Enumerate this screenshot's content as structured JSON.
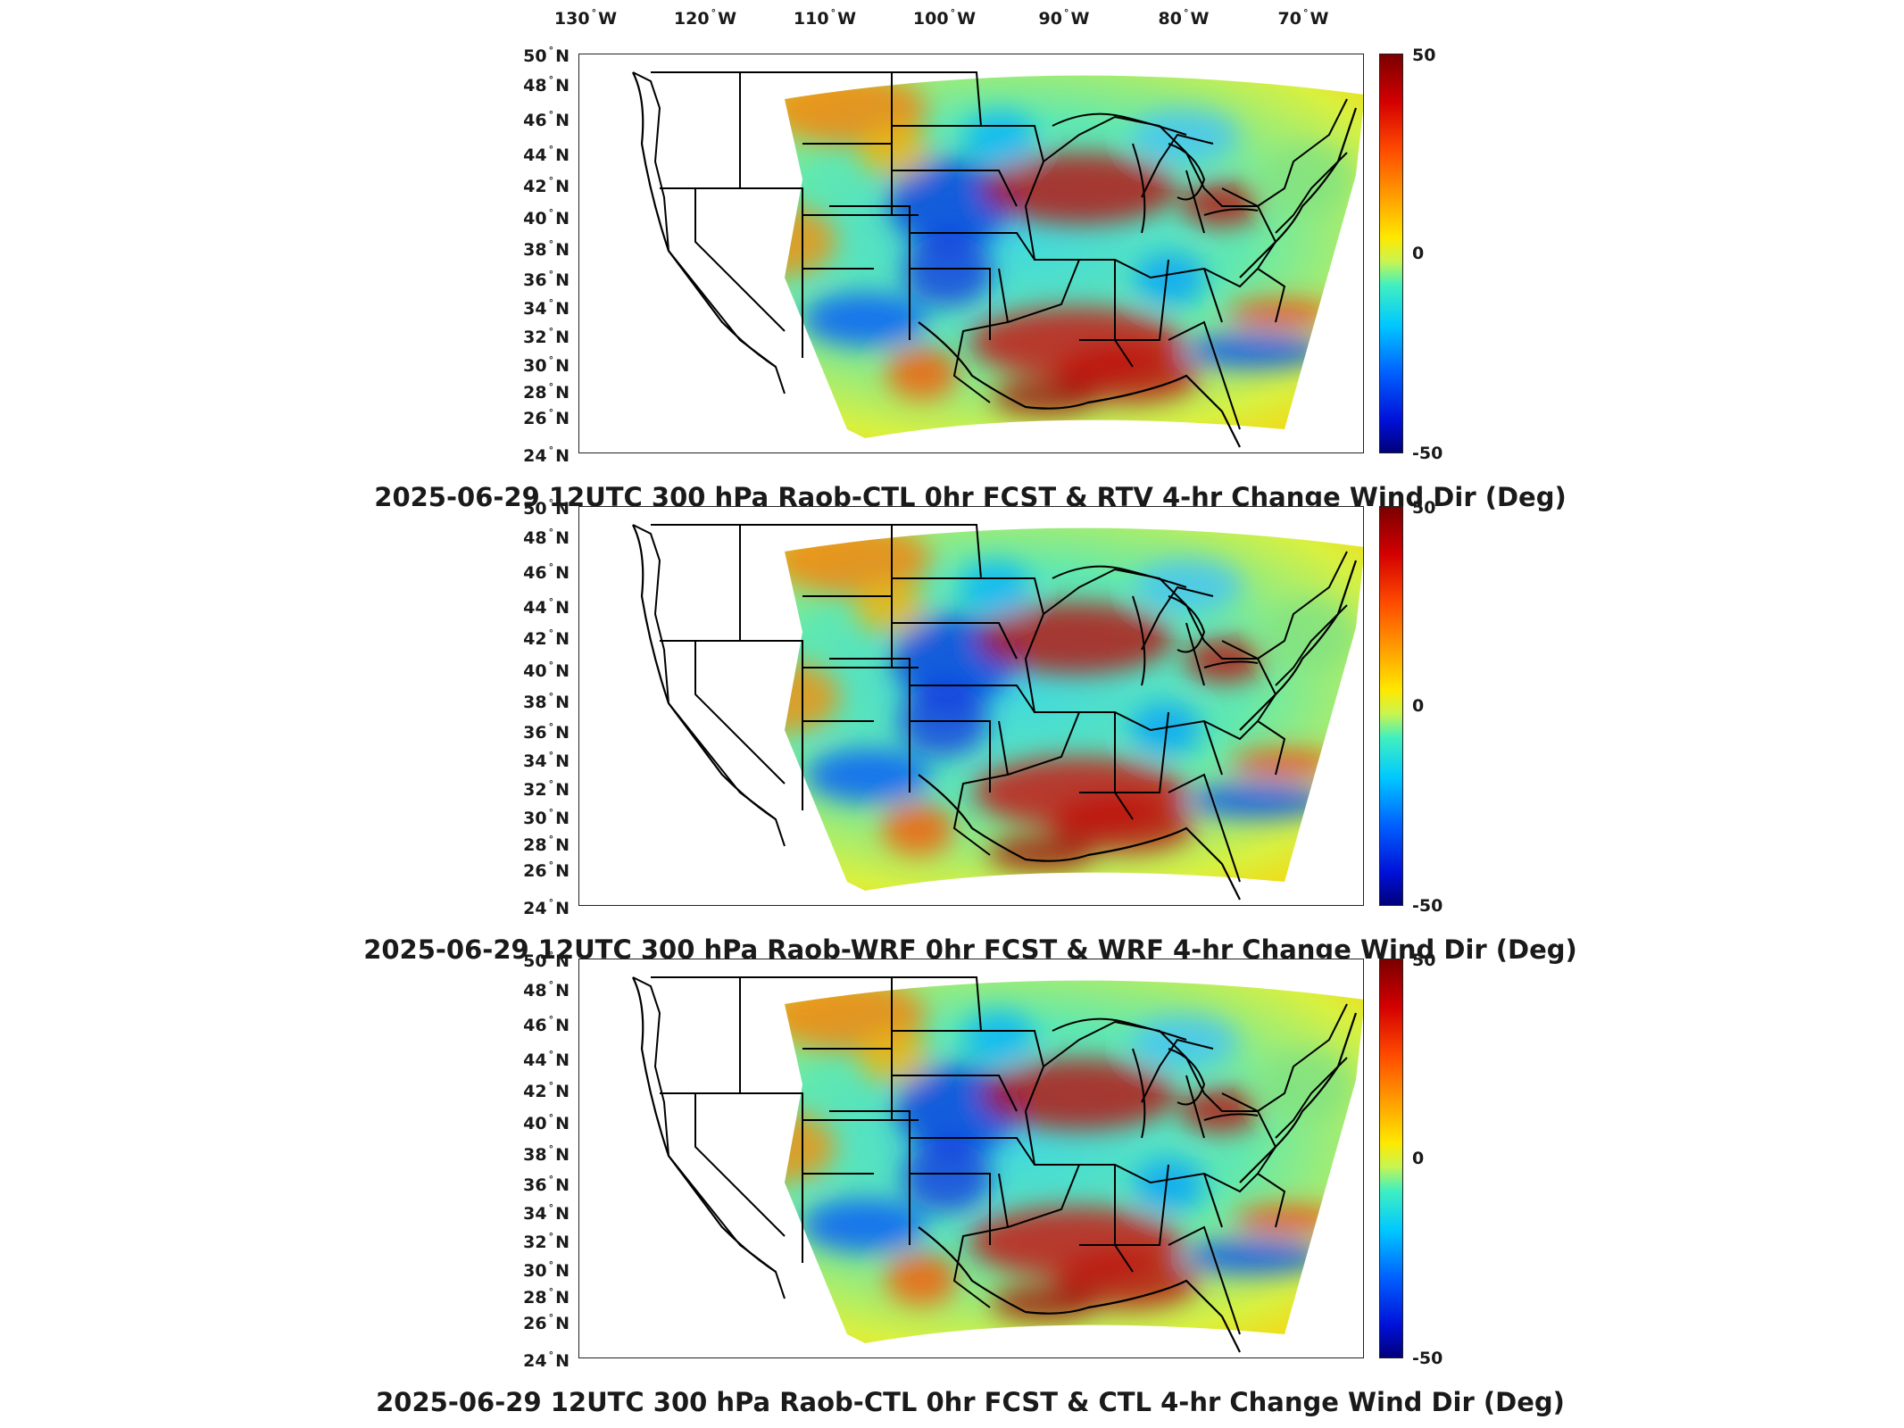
{
  "top_longitude_labels": [
    "130",
    "120",
    "110",
    "100",
    "90",
    "80",
    "70"
  ],
  "lon_hemisphere": "W",
  "lat_labels": [
    "50",
    "48",
    "46",
    "44",
    "42",
    "40",
    "38",
    "36",
    "34",
    "32",
    "30",
    "28",
    "26",
    "24"
  ],
  "lat_hemisphere": "N",
  "degree_symbol": "°",
  "colorbar": {
    "max": "50",
    "mid": "0",
    "min": "-50"
  },
  "panels": [
    {
      "title": "2025-06-29 12UTC 300 hPa Raob-CTL 0hr FCST & RTV 4-hr Change Wind Dir (Deg)"
    },
    {
      "title": "2025-06-29 12UTC 300 hPa Raob-WRF 0hr FCST & WRF 4-hr Change Wind Dir (Deg)"
    },
    {
      "title": "2025-06-29 12UTC 300 hPa Raob-CTL 0hr FCST & CTL 4-hr Change Wind Dir (Deg)"
    }
  ],
  "colors": {
    "colormap": [
      "#00007a",
      "#0010d8",
      "#0060ff",
      "#00c8ff",
      "#40f0c0",
      "#c8f550",
      "#ffe800",
      "#ffa000",
      "#ff4a00",
      "#d40000",
      "#7a0000"
    ],
    "map_lines": "#000000",
    "frame": "#222222"
  },
  "chart_data": {
    "type": "heatmap",
    "variable": "Change Wind Dir (Deg)",
    "level": "300 hPa",
    "valid_time": "2025-06-29 12UTC",
    "color_scale_range": [
      -50,
      50
    ],
    "lon_range": [
      -130,
      -65
    ],
    "lat_range": [
      24,
      50
    ],
    "panels": [
      "2025-06-29 12UTC 300 hPa Raob-CTL 0hr FCST & RTV 4-hr Change Wind Dir (Deg)",
      "2025-06-29 12UTC 300 hPa Raob-WRF 0hr FCST & WRF 4-hr Change Wind Dir (Deg)",
      "2025-06-29 12UTC 300 hPa Raob-CTL 0hr FCST & CTL 4-hr Change Wind Dir (Deg)"
    ]
  }
}
